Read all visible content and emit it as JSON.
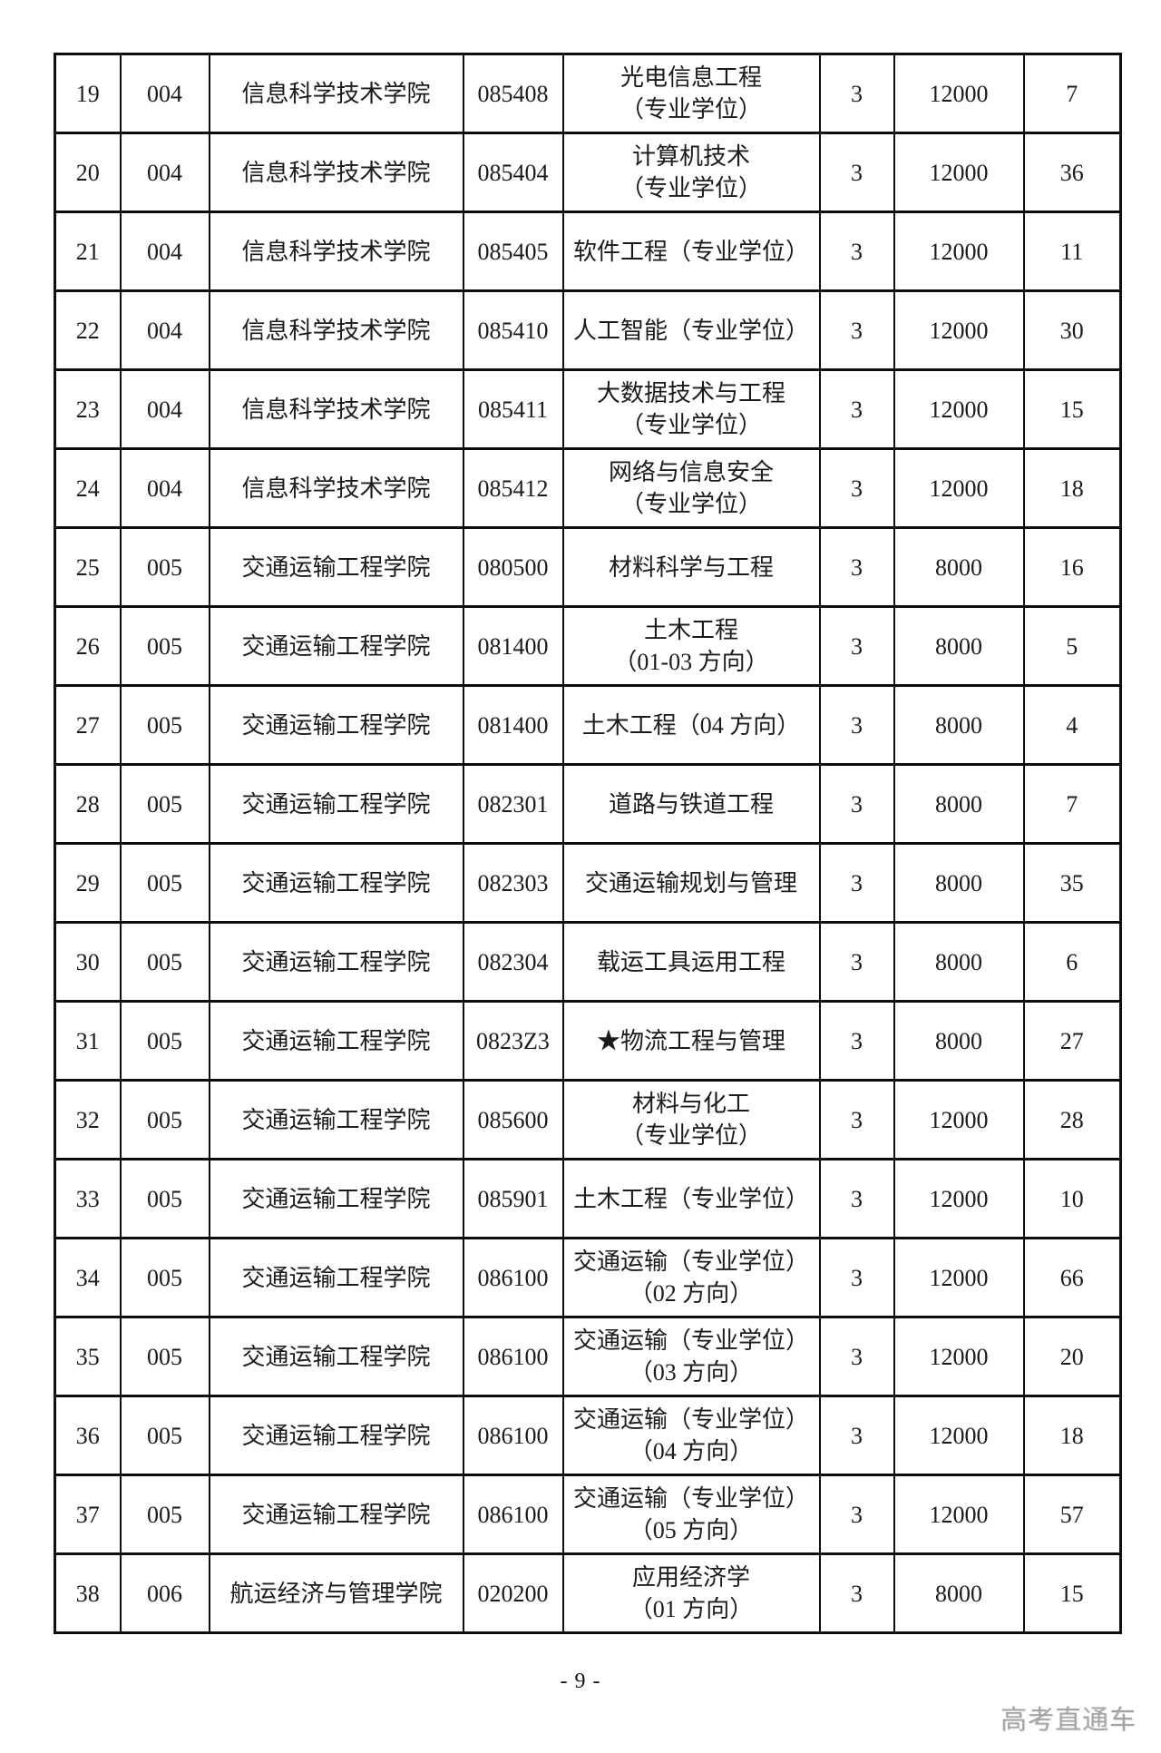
{
  "page": {
    "page_number": "- 9 -",
    "watermark": "高考直通车",
    "background_color": "#ffffff",
    "border_color": "#0e0e0e",
    "watermark_color": "#a4a4a4"
  },
  "table": {
    "columns": [
      "row_no",
      "college_code",
      "college_name",
      "major_code",
      "major_name",
      "duration_years",
      "tuition",
      "planned_enrollment"
    ],
    "rows": [
      [
        "19",
        "004",
        "信息科学技术学院",
        "085408",
        "光电信息工程\n（专业学位）",
        "3",
        "12000",
        "7"
      ],
      [
        "20",
        "004",
        "信息科学技术学院",
        "085404",
        "计算机技术\n（专业学位）",
        "3",
        "12000",
        "36"
      ],
      [
        "21",
        "004",
        "信息科学技术学院",
        "085405",
        "软件工程（专业学位）",
        "3",
        "12000",
        "11"
      ],
      [
        "22",
        "004",
        "信息科学技术学院",
        "085410",
        "人工智能（专业学位）",
        "3",
        "12000",
        "30"
      ],
      [
        "23",
        "004",
        "信息科学技术学院",
        "085411",
        "大数据技术与工程\n（专业学位）",
        "3",
        "12000",
        "15"
      ],
      [
        "24",
        "004",
        "信息科学技术学院",
        "085412",
        "网络与信息安全\n（专业学位）",
        "3",
        "12000",
        "18"
      ],
      [
        "25",
        "005",
        "交通运输工程学院",
        "080500",
        "材料科学与工程",
        "3",
        "8000",
        "16"
      ],
      [
        "26",
        "005",
        "交通运输工程学院",
        "081400",
        "土木工程\n（01-03 方向）",
        "3",
        "8000",
        "5"
      ],
      [
        "27",
        "005",
        "交通运输工程学院",
        "081400",
        "土木工程（04 方向）",
        "3",
        "8000",
        "4"
      ],
      [
        "28",
        "005",
        "交通运输工程学院",
        "082301",
        "道路与铁道工程",
        "3",
        "8000",
        "7"
      ],
      [
        "29",
        "005",
        "交通运输工程学院",
        "082303",
        "交通运输规划与管理",
        "3",
        "8000",
        "35"
      ],
      [
        "30",
        "005",
        "交通运输工程学院",
        "082304",
        "载运工具运用工程",
        "3",
        "8000",
        "6"
      ],
      [
        "31",
        "005",
        "交通运输工程学院",
        "0823Z3",
        "★物流工程与管理",
        "3",
        "8000",
        "27"
      ],
      [
        "32",
        "005",
        "交通运输工程学院",
        "085600",
        "材料与化工\n（专业学位）",
        "3",
        "12000",
        "28"
      ],
      [
        "33",
        "005",
        "交通运输工程学院",
        "085901",
        "土木工程（专业学位）",
        "3",
        "12000",
        "10"
      ],
      [
        "34",
        "005",
        "交通运输工程学院",
        "086100",
        "交通运输（专业学位）\n（02 方向）",
        "3",
        "12000",
        "66"
      ],
      [
        "35",
        "005",
        "交通运输工程学院",
        "086100",
        "交通运输（专业学位）\n（03 方向）",
        "3",
        "12000",
        "20"
      ],
      [
        "36",
        "005",
        "交通运输工程学院",
        "086100",
        "交通运输（专业学位）\n（04 方向）",
        "3",
        "12000",
        "18"
      ],
      [
        "37",
        "005",
        "交通运输工程学院",
        "086100",
        "交通运输（专业学位）\n（05 方向）",
        "3",
        "12000",
        "57"
      ],
      [
        "38",
        "006",
        "航运经济与管理学院",
        "020200",
        "应用经济学\n（01 方向）",
        "3",
        "8000",
        "15"
      ]
    ]
  }
}
